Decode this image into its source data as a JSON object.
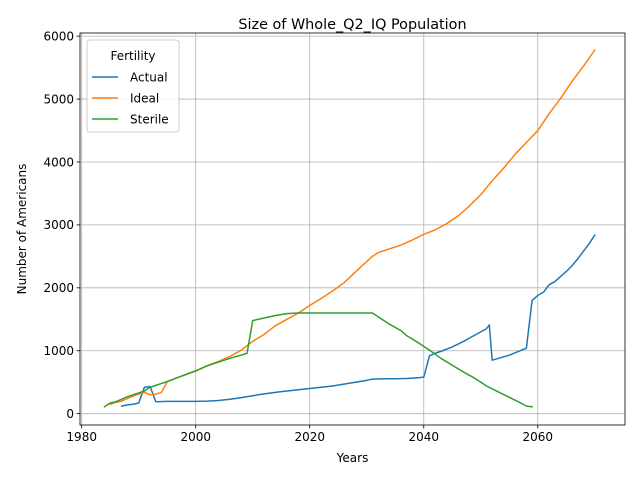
{
  "chart_data": {
    "type": "line",
    "title": "Size of Whole_Q2_IQ Population",
    "xlabel": "Years",
    "ylabel": "Number of Americans",
    "xlim": [
      1979.7,
      2075.3
    ],
    "ylim": [
      -180,
      6050
    ],
    "xticks": [
      1980,
      2000,
      2020,
      2040,
      2060
    ],
    "yticks": [
      0,
      1000,
      2000,
      3000,
      4000,
      5000,
      6000
    ],
    "grid": true,
    "legend": {
      "title": "Fertility",
      "position": "top-left"
    },
    "series": [
      {
        "name": "Actual",
        "color": "#1f77b4",
        "points": [
          [
            1987,
            120
          ],
          [
            1988,
            140
          ],
          [
            1989,
            150
          ],
          [
            1990,
            170
          ],
          [
            1991,
            420
          ],
          [
            1992,
            430
          ],
          [
            1993,
            190
          ],
          [
            1995,
            195
          ],
          [
            1998,
            195
          ],
          [
            2000,
            195
          ],
          [
            2002,
            200
          ],
          [
            2004,
            210
          ],
          [
            2006,
            230
          ],
          [
            2008,
            255
          ],
          [
            2010,
            285
          ],
          [
            2012,
            315
          ],
          [
            2015,
            350
          ],
          [
            2017,
            370
          ],
          [
            2020,
            400
          ],
          [
            2022,
            420
          ],
          [
            2024,
            440
          ],
          [
            2026,
            470
          ],
          [
            2028,
            500
          ],
          [
            2030,
            530
          ],
          [
            2031,
            550
          ],
          [
            2033,
            555
          ],
          [
            2035,
            555
          ],
          [
            2037,
            560
          ],
          [
            2039,
            570
          ],
          [
            2040,
            580
          ],
          [
            2041,
            920
          ],
          [
            2042,
            960
          ],
          [
            2043,
            990
          ],
          [
            2045,
            1060
          ],
          [
            2047,
            1150
          ],
          [
            2049,
            1250
          ],
          [
            2051,
            1350
          ],
          [
            2051.5,
            1410
          ],
          [
            2052,
            850
          ],
          [
            2055,
            930
          ],
          [
            2058,
            1040
          ],
          [
            2059,
            1800
          ],
          [
            2060,
            1880
          ],
          [
            2061,
            1930
          ],
          [
            2062,
            2050
          ],
          [
            2063,
            2100
          ],
          [
            2064,
            2180
          ],
          [
            2065,
            2260
          ],
          [
            2066,
            2350
          ],
          [
            2067,
            2460
          ],
          [
            2068,
            2580
          ],
          [
            2069,
            2700
          ],
          [
            2070,
            2840
          ]
        ]
      },
      {
        "name": "Ideal",
        "color": "#ff7f0e",
        "points": [
          [
            1985,
            150
          ],
          [
            1986,
            180
          ],
          [
            1987,
            200
          ],
          [
            1988,
            240
          ],
          [
            1989,
            280
          ],
          [
            1990,
            310
          ],
          [
            1991,
            340
          ],
          [
            1992,
            300
          ],
          [
            1993,
            310
          ],
          [
            1994,
            340
          ],
          [
            1995,
            510
          ],
          [
            1997,
            580
          ],
          [
            2000,
            680
          ],
          [
            2002,
            760
          ],
          [
            2004,
            830
          ],
          [
            2006,
            910
          ],
          [
            2008,
            1010
          ],
          [
            2010,
            1150
          ],
          [
            2012,
            1260
          ],
          [
            2014,
            1400
          ],
          [
            2016,
            1500
          ],
          [
            2018,
            1600
          ],
          [
            2020,
            1720
          ],
          [
            2022,
            1830
          ],
          [
            2024,
            1950
          ],
          [
            2026,
            2080
          ],
          [
            2028,
            2250
          ],
          [
            2030,
            2420
          ],
          [
            2031,
            2500
          ],
          [
            2032,
            2560
          ],
          [
            2034,
            2620
          ],
          [
            2036,
            2680
          ],
          [
            2038,
            2760
          ],
          [
            2040,
            2850
          ],
          [
            2042,
            2920
          ],
          [
            2044,
            3020
          ],
          [
            2046,
            3140
          ],
          [
            2048,
            3300
          ],
          [
            2050,
            3480
          ],
          [
            2052,
            3700
          ],
          [
            2054,
            3900
          ],
          [
            2056,
            4120
          ],
          [
            2058,
            4310
          ],
          [
            2060,
            4500
          ],
          [
            2062,
            4770
          ],
          [
            2064,
            5010
          ],
          [
            2066,
            5280
          ],
          [
            2068,
            5520
          ],
          [
            2070,
            5780
          ]
        ]
      },
      {
        "name": "Sterile",
        "color": "#2ca02c",
        "points": [
          [
            1984,
            110
          ],
          [
            1985,
            170
          ],
          [
            1986,
            190
          ],
          [
            1987,
            230
          ],
          [
            1988,
            270
          ],
          [
            1989,
            300
          ],
          [
            1990,
            330
          ],
          [
            1991,
            360
          ],
          [
            1992,
            420
          ],
          [
            1993,
            450
          ],
          [
            1995,
            510
          ],
          [
            1997,
            580
          ],
          [
            2000,
            680
          ],
          [
            2002,
            760
          ],
          [
            2004,
            820
          ],
          [
            2006,
            880
          ],
          [
            2008,
            930
          ],
          [
            2009,
            960
          ],
          [
            2010,
            1480
          ],
          [
            2012,
            1520
          ],
          [
            2014,
            1560
          ],
          [
            2016,
            1590
          ],
          [
            2018,
            1600
          ],
          [
            2020,
            1600
          ],
          [
            2025,
            1600
          ],
          [
            2031,
            1600
          ],
          [
            2032,
            1540
          ],
          [
            2034,
            1420
          ],
          [
            2036,
            1320
          ],
          [
            2037,
            1240
          ],
          [
            2039,
            1130
          ],
          [
            2041,
            1010
          ],
          [
            2043,
            880
          ],
          [
            2045,
            770
          ],
          [
            2047,
            660
          ],
          [
            2049,
            560
          ],
          [
            2051,
            440
          ],
          [
            2053,
            350
          ],
          [
            2055,
            260
          ],
          [
            2057,
            170
          ],
          [
            2058,
            120
          ],
          [
            2059,
            110
          ]
        ]
      }
    ]
  }
}
